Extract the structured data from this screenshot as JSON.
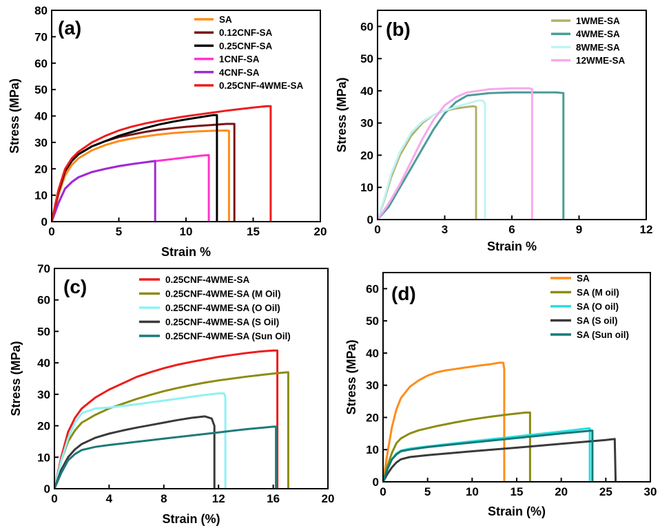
{
  "chart_data": [
    {
      "panel": "(a)",
      "type": "line",
      "xlabel": "Strain %",
      "ylabel": "Stress (MPa)",
      "xlim": [
        0,
        20
      ],
      "ylim": [
        0,
        80
      ],
      "xticks": [
        0,
        5,
        10,
        15,
        20
      ],
      "yticks": [
        0,
        10,
        20,
        30,
        40,
        50,
        60,
        70,
        80
      ],
      "legend_position": "top-center",
      "series": [
        {
          "name": "SA",
          "color": "#ff8c1a",
          "x": [
            0,
            0.5,
            1,
            1.5,
            2,
            3,
            4,
            5,
            6,
            7,
            8,
            9,
            10,
            11,
            12,
            13,
            13.2,
            13.2
          ],
          "y": [
            0,
            10,
            17.5,
            21.5,
            24,
            27,
            29,
            30.5,
            31.5,
            32.3,
            33,
            33.5,
            33.9,
            34.2,
            34.4,
            34.5,
            34.4,
            0
          ]
        },
        {
          "name": "0.12CNF-SA",
          "color": "#7a1414",
          "x": [
            0,
            0.5,
            1,
            1.5,
            2,
            3,
            4,
            5,
            6,
            7,
            8,
            9,
            10,
            11,
            12,
            13,
            13.6,
            13.6
          ],
          "y": [
            0,
            11,
            19,
            23,
            25.5,
            28.5,
            30.5,
            32,
            33,
            34,
            34.8,
            35.4,
            35.9,
            36.3,
            36.6,
            37,
            37,
            0
          ]
        },
        {
          "name": "0.25CNF-SA",
          "color": "#000000",
          "x": [
            0,
            0.5,
            1,
            1.5,
            2,
            3,
            4,
            5,
            6,
            7,
            8,
            9,
            10,
            11,
            12,
            12.3,
            12.3
          ],
          "y": [
            0,
            11.5,
            19.5,
            23,
            25.5,
            28.5,
            30.5,
            32.5,
            34,
            35.5,
            36.8,
            37.8,
            38.7,
            39.5,
            40.3,
            40.3,
            0
          ]
        },
        {
          "name": "1CNF-SA",
          "color": "#ff33cc",
          "x": [
            0,
            0.5,
            1,
            1.5,
            2,
            3,
            4,
            5,
            6,
            7,
            8,
            9,
            10,
            11,
            11.7,
            11.7
          ],
          "y": [
            0,
            7,
            12.5,
            15,
            16.8,
            18.8,
            20,
            21,
            21.8,
            22.5,
            23.1,
            23.7,
            24.3,
            24.9,
            25.2,
            0
          ]
        },
        {
          "name": "4CNF-SA",
          "color": "#9d2bd6",
          "x": [
            0,
            0.5,
            1,
            1.5,
            2,
            3,
            4,
            5,
            6,
            7,
            7.7,
            7.7
          ],
          "y": [
            0,
            7,
            12.5,
            15,
            16.8,
            18.8,
            20,
            21,
            21.8,
            22.5,
            23,
            0
          ]
        },
        {
          "name": "0.25CNF-4WME-SA",
          "color": "#ee1c1c",
          "x": [
            0,
            0.5,
            1,
            1.5,
            2,
            3,
            4,
            5,
            6,
            7,
            8,
            9,
            10,
            11,
            12,
            13,
            14,
            15,
            16,
            16.3,
            16.3
          ],
          "y": [
            0,
            12,
            20,
            24,
            26.5,
            30,
            32.5,
            34.5,
            36,
            37.2,
            38.2,
            39.1,
            39.9,
            40.6,
            41.3,
            42,
            42.6,
            43.2,
            43.7,
            43.7,
            0
          ]
        }
      ]
    },
    {
      "panel": "(b)",
      "type": "line",
      "xlabel": "Strain %",
      "ylabel": "Stress (MPa)",
      "xlim": [
        0,
        12
      ],
      "ylim": [
        0,
        65
      ],
      "xticks": [
        0,
        3,
        6,
        9,
        12
      ],
      "yticks": [
        0,
        10,
        20,
        30,
        40,
        50,
        60
      ],
      "legend_position": "top-right",
      "series": [
        {
          "name": "1WME-SA",
          "color": "#b3b06a",
          "x": [
            0,
            0.3,
            0.6,
            1,
            1.5,
            2,
            2.5,
            3,
            3.5,
            4,
            4.3,
            4.4,
            4.4
          ],
          "y": [
            0,
            6,
            13,
            20,
            26,
            30,
            32.5,
            33.8,
            34.5,
            35,
            35.2,
            35,
            0
          ]
        },
        {
          "name": "4WME-SA",
          "color": "#4b9c96",
          "x": [
            0,
            0.5,
            1,
            1.5,
            2,
            2.5,
            3,
            3.5,
            4,
            5,
            6,
            7,
            8,
            8.3,
            8.3
          ],
          "y": [
            0,
            4,
            10,
            16,
            22,
            28,
            33,
            36.5,
            38.5,
            39.3,
            39.5,
            39.5,
            39.5,
            39.3,
            0
          ]
        },
        {
          "name": "8WME-SA",
          "color": "#bff4f4",
          "x": [
            0,
            0.3,
            0.6,
            1,
            1.5,
            2,
            2.5,
            3,
            3.5,
            4,
            4.5,
            4.7,
            4.8,
            4.8
          ],
          "y": [
            0,
            6.5,
            14,
            21,
            27,
            30.5,
            32.5,
            33.8,
            35,
            36,
            37,
            37,
            36,
            0
          ]
        },
        {
          "name": "12WME-SA",
          "color": "#f7a8ef",
          "x": [
            0,
            0.5,
            1,
            1.5,
            2,
            2.5,
            3,
            3.5,
            4,
            5,
            6,
            6.8,
            6.9,
            6.9
          ],
          "y": [
            0,
            5,
            11,
            18,
            25,
            31,
            35.5,
            38,
            39.5,
            40.5,
            40.8,
            40.8,
            40.5,
            0
          ]
        }
      ]
    },
    {
      "panel": "(c)",
      "type": "line",
      "xlabel": "Strain (%)",
      "ylabel": "Stress (MPa)",
      "xlim": [
        0,
        20
      ],
      "ylim": [
        0,
        70
      ],
      "xticks": [
        0,
        4,
        8,
        12,
        16,
        20
      ],
      "yticks": [
        0,
        10,
        20,
        30,
        40,
        50,
        60,
        70
      ],
      "legend_position": "top-right",
      "series": [
        {
          "name": "0.25CNF-4WME-SA",
          "color": "#ee1c1c",
          "x": [
            0,
            0.5,
            1,
            1.5,
            2,
            3,
            4,
            5,
            6,
            7,
            8,
            9,
            10,
            11,
            12,
            13,
            14,
            15,
            16,
            16.3,
            16.3
          ],
          "y": [
            0,
            10,
            18,
            22.5,
            25.5,
            29,
            31.5,
            33.5,
            35.5,
            37,
            38.3,
            39.4,
            40.3,
            41.1,
            41.9,
            42.5,
            43.1,
            43.6,
            43.9,
            43.9,
            0
          ]
        },
        {
          "name": "0.25CNF-4WME-SA (M Oil)",
          "color": "#8c8c12",
          "x": [
            0,
            0.5,
            1,
            1.5,
            2,
            3,
            4,
            5,
            6,
            7,
            8,
            9,
            10,
            11,
            12,
            13,
            14,
            15,
            16,
            17,
            17.1,
            17.1
          ],
          "y": [
            0,
            9,
            15,
            18.5,
            21,
            23.5,
            25.5,
            27,
            28.5,
            29.8,
            31,
            32,
            32.9,
            33.7,
            34.4,
            35,
            35.6,
            36.1,
            36.6,
            37,
            37,
            0
          ]
        },
        {
          "name": "0.25CNF-4WME-SA (O Oil)",
          "color": "#8ef2f2",
          "x": [
            0,
            0.5,
            1,
            1.5,
            2,
            3,
            4,
            5,
            6,
            7,
            8,
            9,
            10,
            11,
            12,
            12.4,
            12.5,
            12.5
          ],
          "y": [
            0,
            9,
            16,
            21,
            24,
            25.5,
            25.8,
            26.3,
            26.8,
            27.4,
            28,
            28.6,
            29.2,
            29.8,
            30.3,
            30.3,
            29,
            0
          ]
        },
        {
          "name": "0.25CNF-4WME-SA (S Oil)",
          "color": "#3a3a3a",
          "x": [
            0,
            0.5,
            1,
            1.5,
            2,
            3,
            4,
            5,
            6,
            7,
            8,
            9,
            10,
            11,
            11.5,
            11.7,
            11.7
          ],
          "y": [
            0,
            6,
            10,
            12.5,
            14.2,
            16.2,
            17.5,
            18.5,
            19.4,
            20.2,
            21,
            21.8,
            22.5,
            23,
            22.3,
            20,
            0
          ]
        },
        {
          "name": "0.25CNF-4WME-SA (Sun Oil)",
          "color": "#1f7a7a",
          "x": [
            0,
            0.5,
            1,
            1.5,
            2,
            3,
            4,
            5,
            6,
            7,
            8,
            9,
            10,
            11,
            12,
            13,
            14,
            15,
            16,
            16.2,
            16.2
          ],
          "y": [
            0,
            5,
            9,
            11,
            12.3,
            13.3,
            13.9,
            14.4,
            14.9,
            15.4,
            15.9,
            16.4,
            16.9,
            17.4,
            17.9,
            18.4,
            18.9,
            19.3,
            19.7,
            19.7,
            0
          ]
        }
      ]
    },
    {
      "panel": "(d)",
      "type": "line",
      "xlabel": "Strain (%)",
      "ylabel": "Stress (MPa)",
      "xlim": [
        0,
        30
      ],
      "ylim": [
        0,
        65
      ],
      "xticks": [
        0,
        5,
        10,
        15,
        20,
        25,
        30
      ],
      "yticks": [
        0,
        10,
        20,
        30,
        40,
        50,
        60
      ],
      "legend_position": "top-right",
      "series": [
        {
          "name": "SA",
          "color": "#ff8c1a",
          "x": [
            0,
            0.5,
            1,
            1.5,
            2,
            3,
            4,
            5,
            6,
            7,
            8,
            9,
            10,
            11,
            12,
            13,
            13.5,
            13.6,
            13.6
          ],
          "y": [
            0,
            9,
            17,
            22.5,
            26,
            29.5,
            31.5,
            33,
            34,
            34.6,
            35,
            35.4,
            35.8,
            36.2,
            36.5,
            37,
            37,
            35,
            0
          ]
        },
        {
          "name": "SA (M oil)",
          "color": "#8c8c12",
          "x": [
            0,
            0.5,
            1,
            1.5,
            2,
            3,
            4,
            6,
            8,
            10,
            12,
            14,
            16,
            16.5,
            16.5
          ],
          "y": [
            0,
            5,
            9,
            12,
            13.5,
            15,
            16,
            17.3,
            18.4,
            19.4,
            20.2,
            20.9,
            21.5,
            21.5,
            0
          ]
        },
        {
          "name": "SA (O oil)",
          "color": "#27dede",
          "x": [
            0,
            0.5,
            1,
            1.5,
            2,
            3,
            5,
            10,
            15,
            20,
            23,
            23.2,
            23.2
          ],
          "y": [
            0,
            4,
            7,
            8.8,
            9.7,
            10.3,
            11,
            12.6,
            14.1,
            15.6,
            16.6,
            16.6,
            0
          ]
        },
        {
          "name": "SA (S oil)",
          "color": "#3a3a3a",
          "x": [
            0,
            0.5,
            1,
            1.5,
            2,
            3,
            5,
            10,
            15,
            20,
            25,
            26,
            26.1
          ],
          "y": [
            0,
            2.5,
            4.5,
            6,
            7,
            7.7,
            8.3,
            9.5,
            10.6,
            11.8,
            13,
            13.3,
            0
          ]
        },
        {
          "name": "SA (Sun oil)",
          "color": "#127a7a",
          "x": [
            0,
            0.5,
            1,
            1.5,
            2,
            3,
            5,
            10,
            15,
            20,
            23.4,
            23.5,
            23.5
          ],
          "y": [
            0,
            4,
            7,
            8.5,
            9.5,
            10,
            10.8,
            12.2,
            13.6,
            15,
            15.9,
            15.9,
            0
          ]
        }
      ]
    }
  ]
}
